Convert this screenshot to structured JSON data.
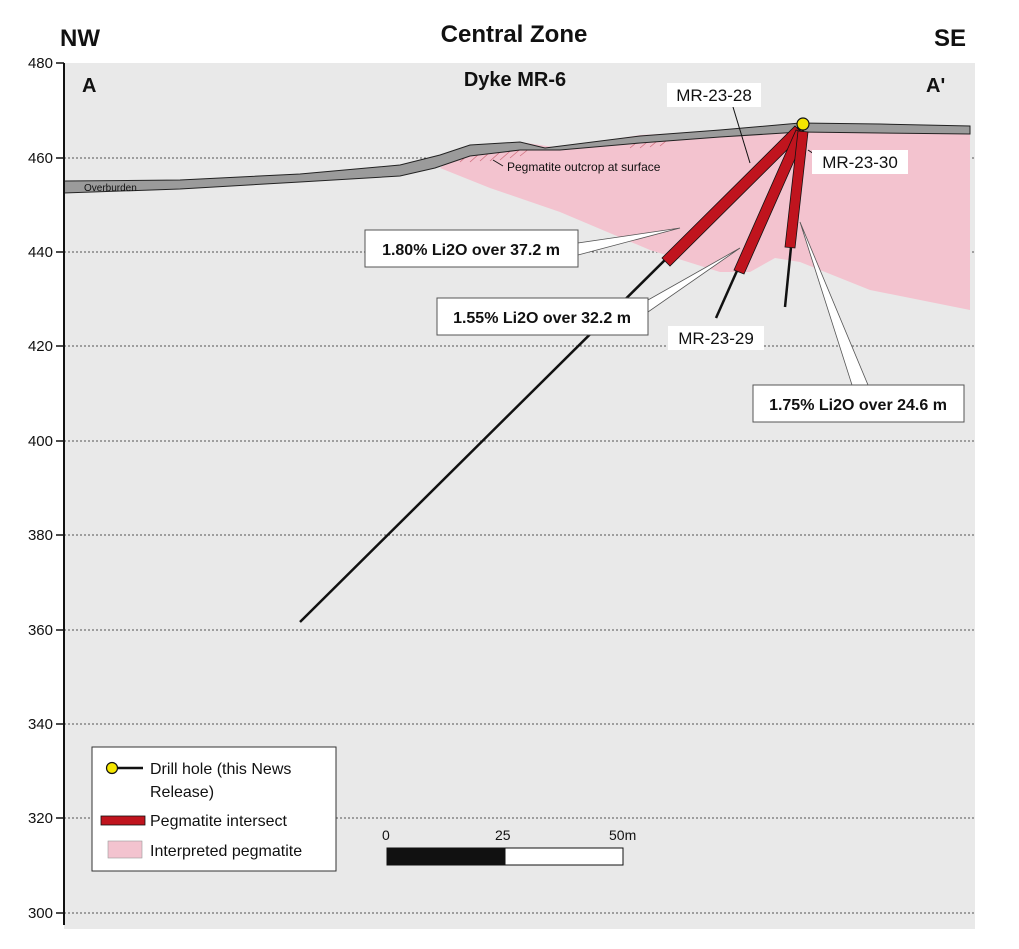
{
  "header": {
    "title": "Central Zone",
    "subtitle": "Dyke MR-6",
    "left_direction": "NW",
    "right_direction": "SE",
    "section_start": "A",
    "section_end": "A'"
  },
  "elevation_axis": {
    "ticks": [
      "480",
      "460",
      "440",
      "420",
      "400",
      "380",
      "360",
      "340",
      "320",
      "300"
    ],
    "min": 300,
    "max": 480
  },
  "labels": {
    "overburden": "Overburden",
    "outcrop": "Pegmatite outcrop at surface"
  },
  "drill_holes": [
    {
      "id": "MR-23-28"
    },
    {
      "id": "MR-23-29"
    },
    {
      "id": "MR-23-30"
    }
  ],
  "intercepts": [
    {
      "hole": "MR-23-28",
      "text": "1.80% Li2O over 37.2 m"
    },
    {
      "hole": "MR-23-29",
      "text": "1.55% Li2O over 32.2 m"
    },
    {
      "hole": "MR-23-30",
      "text": "1.75% Li2O over 24.6 m"
    }
  ],
  "legend": {
    "drill_hole_line1": "Drill hole (this News",
    "drill_hole_line2": "Release)",
    "pegmatite_intersect": "Pegmatite intersect",
    "interpreted_pegmatite": "Interpreted pegmatite"
  },
  "scale_bar": {
    "tick_0": "0",
    "tick_25": "25",
    "tick_50": "50m"
  },
  "colors": {
    "background": "#e9e9e9",
    "pegmatite_fill": "#f3c3cf",
    "intersect": "#c0141e",
    "overburden": "#9b9b9b",
    "collar": "#f5e600"
  }
}
